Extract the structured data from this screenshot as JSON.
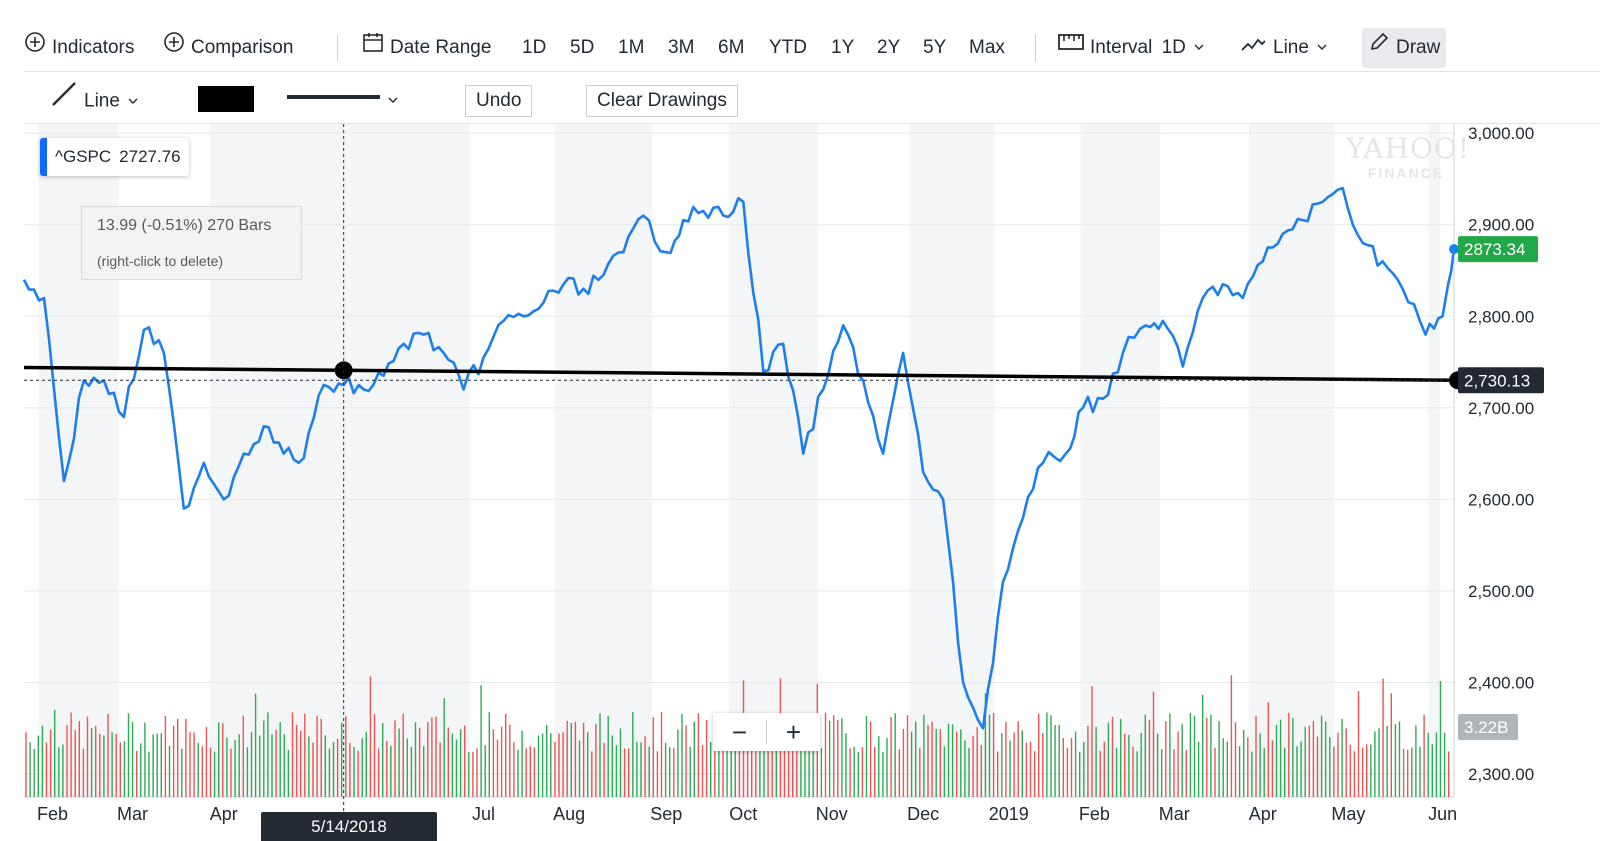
{
  "toolbar": {
    "indicators_label": "Indicators",
    "comparison_label": "Comparison",
    "date_range_label": "Date Range",
    "ranges": [
      "1D",
      "5D",
      "1M",
      "3M",
      "6M",
      "YTD",
      "1Y",
      "2Y",
      "5Y",
      "Max"
    ],
    "interval_label": "Interval",
    "interval_value": "1D",
    "chart_type_label": "Line",
    "draw_label": "Draw"
  },
  "draw_toolbar": {
    "tool_label": "Line",
    "line_color": "#000000",
    "undo_label": "Undo",
    "clear_label": "Clear Drawings"
  },
  "legend": {
    "symbol": "^GSPC",
    "value": "2727.76",
    "color": "#0f69ff"
  },
  "measure": {
    "line1": "13.99 (-0.51%) 270 Bars",
    "line2": "(right-click to delete)"
  },
  "crosshair_date": "5/14/2018",
  "last_price_label": "2873.34",
  "trendline_label": "2,730.13",
  "volume_label": "3.22B",
  "logo": {
    "line1": "YAHOO!",
    "line2": "FINANCE"
  },
  "zoom": {
    "out": "−",
    "in": "+"
  },
  "colors": {
    "line": "#1b7ff0",
    "up": "#2daa56",
    "down": "#f05252",
    "last_bg": "#21a849",
    "tag_bg": "#232a31",
    "vol_tag_bg": "#b0b5ba"
  },
  "chart_data": {
    "type": "line",
    "title": "",
    "series": [
      {
        "name": "^GSPC",
        "x": [
          "2018-01-22",
          "2018-01-29",
          "2018-02-05",
          "2018-02-12",
          "2018-02-19",
          "2018-02-26",
          "2018-03-05",
          "2018-03-12",
          "2018-03-19",
          "2018-03-26",
          "2018-04-02",
          "2018-04-09",
          "2018-04-16",
          "2018-04-23",
          "2018-04-30",
          "2018-05-07",
          "2018-05-14",
          "2018-05-21",
          "2018-05-28",
          "2018-06-04",
          "2018-06-11",
          "2018-06-18",
          "2018-06-25",
          "2018-07-02",
          "2018-07-09",
          "2018-07-16",
          "2018-07-23",
          "2018-07-30",
          "2018-08-06",
          "2018-08-13",
          "2018-08-20",
          "2018-08-27",
          "2018-09-04",
          "2018-09-10",
          "2018-09-17",
          "2018-09-24",
          "2018-10-01",
          "2018-10-08",
          "2018-10-15",
          "2018-10-22",
          "2018-10-29",
          "2018-11-05",
          "2018-11-12",
          "2018-11-19",
          "2018-11-26",
          "2018-12-03",
          "2018-12-10",
          "2018-12-17",
          "2018-12-24",
          "2018-12-31",
          "2019-01-07",
          "2019-01-14",
          "2019-01-22",
          "2019-01-28",
          "2019-02-04",
          "2019-02-11",
          "2019-02-19",
          "2019-02-25",
          "2019-03-04",
          "2019-03-11",
          "2019-03-18",
          "2019-03-25",
          "2019-04-01",
          "2019-04-08",
          "2019-04-15",
          "2019-04-22",
          "2019-04-29",
          "2019-05-06",
          "2019-05-13",
          "2019-05-20",
          "2019-05-28",
          "2019-06-03",
          "2019-06-07"
        ],
        "y": [
          2840,
          2820,
          2620,
          2730,
          2730,
          2690,
          2785,
          2760,
          2590,
          2640,
          2600,
          2650,
          2680,
          2650,
          2645,
          2725,
          2725,
          2720,
          2735,
          2770,
          2780,
          2760,
          2720,
          2755,
          2795,
          2800,
          2815,
          2835,
          2830,
          2845,
          2870,
          2910,
          2870,
          2905,
          2915,
          2910,
          2925,
          2740,
          2770,
          2650,
          2720,
          2790,
          2730,
          2650,
          2760,
          2630,
          2600,
          2400,
          2350,
          2510,
          2580,
          2640,
          2650,
          2700,
          2710,
          2760,
          2790,
          2795,
          2745,
          2820,
          2835,
          2820,
          2860,
          2890,
          2905,
          2925,
          2940,
          2880,
          2860,
          2830,
          2780,
          2800,
          2873.34
        ]
      }
    ],
    "trendline": {
      "start": {
        "x": "2018-01-22",
        "y": 2744.12
      },
      "end": {
        "x": "2019-06-07",
        "y": 2730.13
      },
      "label": "2,730.13"
    },
    "y_ticks": [
      "3,000.00",
      "2,900.00",
      "2,800.00",
      "2,700.00",
      "2,600.00",
      "2,500.00",
      "2,400.00",
      "2,300.00"
    ],
    "y_tick_values": [
      3000,
      2900,
      2800,
      2700,
      2600,
      2500,
      2400,
      2300
    ],
    "ylim": [
      2275,
      3010
    ],
    "x_ticks": [
      {
        "label": "Feb",
        "x": "2018-02-01"
      },
      {
        "label": "Mar",
        "x": "2018-03-01"
      },
      {
        "label": "Apr",
        "x": "2018-04-02"
      },
      {
        "label": "Jul",
        "x": "2018-07-02"
      },
      {
        "label": "Aug",
        "x": "2018-08-01"
      },
      {
        "label": "Sep",
        "x": "2018-09-04"
      },
      {
        "label": "Oct",
        "x": "2018-10-01"
      },
      {
        "label": "Nov",
        "x": "2018-11-01"
      },
      {
        "label": "Dec",
        "x": "2018-12-03"
      },
      {
        "label": "2019",
        "x": "2019-01-02"
      },
      {
        "label": "Feb",
        "x": "2019-02-01"
      },
      {
        "label": "Mar",
        "x": "2019-03-01"
      },
      {
        "label": "Apr",
        "x": "2019-04-01"
      },
      {
        "label": "May",
        "x": "2019-05-01"
      },
      {
        "label": "Jun",
        "x": "2019-06-03"
      }
    ],
    "xlim": [
      "2018-01-22",
      "2019-06-07"
    ],
    "last_price": 2873.34,
    "volume_last": "3.22B",
    "grid": true
  }
}
